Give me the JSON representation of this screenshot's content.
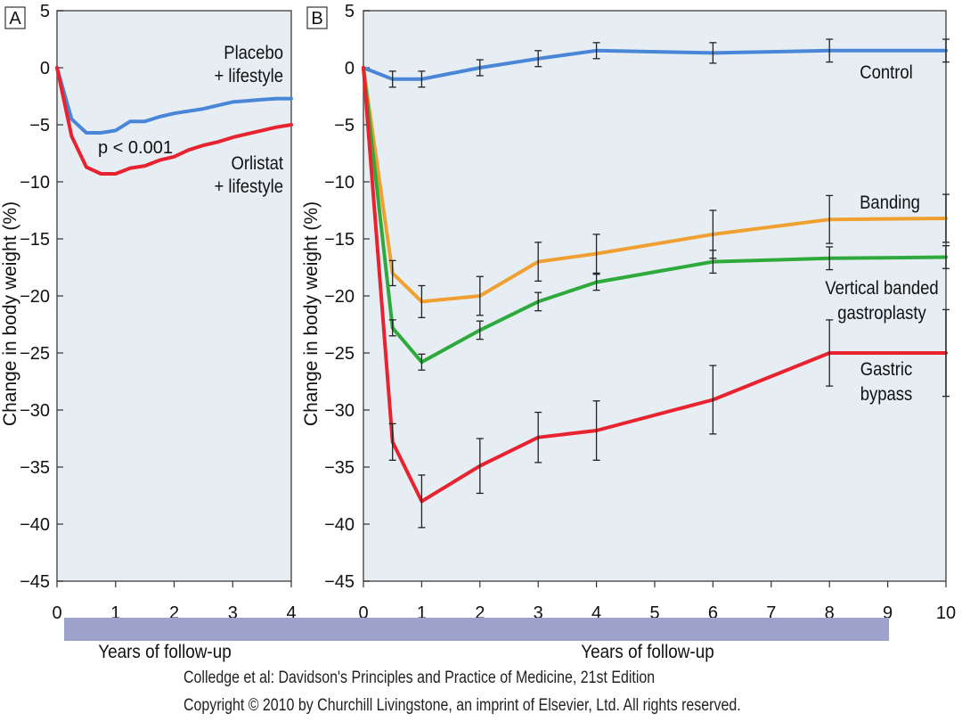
{
  "chart_data": [
    {
      "type": "line",
      "panel_label": "A",
      "xlabel": "Years of follow-up",
      "ylabel": "Change in body weight (%)",
      "xlim": [
        0,
        4
      ],
      "ylim": [
        -45,
        5
      ],
      "xticks": [
        0,
        1,
        2,
        3,
        4
      ],
      "yticks": [
        5,
        0,
        -5,
        -10,
        -15,
        -20,
        -25,
        -30,
        -35,
        -40,
        -45
      ],
      "annotation": "p < 0.001",
      "series": [
        {
          "name": "Placebo + lifestyle",
          "label_lines": [
            "Placebo",
            "+ lifestyle"
          ],
          "color": "#4a86d8",
          "x": [
            0,
            0.25,
            0.5,
            0.75,
            1,
            1.25,
            1.5,
            1.75,
            2,
            2.25,
            2.5,
            2.75,
            3,
            3.25,
            3.5,
            3.75,
            4
          ],
          "y": [
            0,
            -4.5,
            -5.7,
            -5.7,
            -5.5,
            -4.7,
            -4.7,
            -4.3,
            -4.0,
            -3.8,
            -3.6,
            -3.3,
            -3.0,
            -2.9,
            -2.8,
            -2.7,
            -2.7
          ]
        },
        {
          "name": "Orlistat + lifestyle",
          "label_lines": [
            "Orlistat",
            "+ lifestyle"
          ],
          "color": "#e8222f",
          "x": [
            0,
            0.25,
            0.5,
            0.75,
            1,
            1.25,
            1.5,
            1.75,
            2,
            2.25,
            2.5,
            2.75,
            3,
            3.25,
            3.5,
            3.75,
            4
          ],
          "y": [
            0,
            -6.0,
            -8.7,
            -9.3,
            -9.3,
            -8.8,
            -8.6,
            -8.1,
            -7.8,
            -7.2,
            -6.8,
            -6.5,
            -6.1,
            -5.8,
            -5.5,
            -5.2,
            -5.0
          ]
        }
      ]
    },
    {
      "type": "line",
      "panel_label": "B",
      "xlabel": "Years of follow-up",
      "ylabel": "Change in body weight (%)",
      "xlim": [
        0,
        10
      ],
      "ylim": [
        -45,
        5
      ],
      "xticks": [
        0,
        1,
        2,
        3,
        4,
        5,
        6,
        7,
        8,
        9,
        10
      ],
      "yticks": [
        5,
        0,
        -5,
        -10,
        -15,
        -20,
        -25,
        -30,
        -35,
        -40,
        -45
      ],
      "series": [
        {
          "name": "Control",
          "label_lines": [
            "Control"
          ],
          "color": "#4a86d8",
          "x": [
            0,
            0.5,
            1,
            2,
            3,
            4,
            6,
            8,
            10
          ],
          "y": [
            0,
            -1.0,
            -1.0,
            0,
            0.8,
            1.5,
            1.3,
            1.5,
            1.5
          ],
          "err": [
            0,
            0.7,
            0.7,
            0.7,
            0.7,
            0.7,
            0.9,
            1.0,
            1.0
          ]
        },
        {
          "name": "Banding",
          "label_lines": [
            "Banding"
          ],
          "color": "#f0a030",
          "x": [
            0,
            0.5,
            1,
            2,
            3,
            4,
            6,
            8,
            10
          ],
          "y": [
            0,
            -18.0,
            -20.5,
            -20.0,
            -17.0,
            -16.3,
            -14.6,
            -13.3,
            -13.2
          ],
          "err": [
            0,
            1.1,
            1.4,
            1.7,
            1.7,
            1.7,
            2.1,
            2.1,
            2.1
          ]
        },
        {
          "name": "Vertical banded gastroplasty",
          "label_lines": [
            "Vertical banded",
            "gastroplasty"
          ],
          "color": "#2eaa3c",
          "x": [
            0,
            0.5,
            1,
            2,
            3,
            4,
            6,
            8,
            10
          ],
          "y": [
            0,
            -22.8,
            -25.8,
            -23.0,
            -20.5,
            -18.8,
            -17.0,
            -16.7,
            -16.6
          ],
          "err": [
            0,
            0.7,
            0.7,
            0.8,
            0.8,
            0.7,
            1.0,
            1.0,
            1.0
          ]
        },
        {
          "name": "Gastric bypass",
          "label_lines": [
            "Gastric",
            "bypass"
          ],
          "color": "#e8222f",
          "x": [
            0,
            0.5,
            1,
            2,
            3,
            4,
            6,
            8,
            10
          ],
          "y": [
            0,
            -32.8,
            -38.0,
            -34.9,
            -32.4,
            -31.8,
            -29.1,
            -25.0,
            -25.0
          ],
          "err": [
            0,
            1.6,
            2.3,
            2.4,
            2.2,
            2.6,
            3.0,
            2.9,
            3.8
          ]
        }
      ]
    }
  ],
  "credit": {
    "line1": "Colledge et al: Davidson's Principles and Practice of Medicine, 21st Edition",
    "line2": "Copyright © 2010 by Churchill Livingstone, an imprint of Elsevier, Ltd. All rights reserved."
  }
}
